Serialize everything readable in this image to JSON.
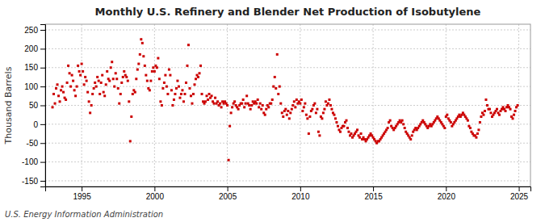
{
  "chart_data": {
    "type": "scatter",
    "title": "Monthly U.S. Refinery and Blender Net Production of Isobutylene",
    "y_label": "Thousand Barrels",
    "source": "U.S. Energy Information Administration",
    "color": "#cc0000",
    "marker": "square",
    "grid": true,
    "xlim": [
      1992.5,
      2025.8
    ],
    "ylim": [
      -165,
      265
    ],
    "xticks": [
      1995,
      2000,
      2005,
      2010,
      2015,
      2020,
      2025
    ],
    "yticks": [
      -150,
      -100,
      -50,
      0,
      50,
      100,
      150,
      200,
      250
    ],
    "x": [
      1993.0,
      1993.083,
      1993.167,
      1993.25,
      1993.333,
      1993.417,
      1993.5,
      1993.583,
      1993.667,
      1993.75,
      1993.833,
      1993.917,
      1994.0,
      1994.083,
      1994.167,
      1994.25,
      1994.333,
      1994.417,
      1994.5,
      1994.583,
      1994.667,
      1994.75,
      1994.833,
      1994.917,
      1995.0,
      1995.083,
      1995.167,
      1995.25,
      1995.333,
      1995.417,
      1995.5,
      1995.583,
      1995.667,
      1995.75,
      1995.833,
      1995.917,
      1996.0,
      1996.083,
      1996.167,
      1996.25,
      1996.333,
      1996.417,
      1996.5,
      1996.583,
      1996.667,
      1996.75,
      1996.833,
      1996.917,
      1997.0,
      1997.083,
      1997.167,
      1997.25,
      1997.333,
      1997.417,
      1997.5,
      1997.583,
      1997.667,
      1997.75,
      1997.833,
      1997.917,
      1998.0,
      1998.083,
      1998.167,
      1998.25,
      1998.333,
      1998.417,
      1998.5,
      1998.583,
      1998.667,
      1998.75,
      1998.833,
      1998.917,
      1999.0,
      1999.083,
      1999.167,
      1999.25,
      1999.333,
      1999.417,
      1999.5,
      1999.583,
      1999.667,
      1999.75,
      1999.833,
      1999.917,
      2000.0,
      2000.083,
      2000.167,
      2000.25,
      2000.333,
      2000.417,
      2000.5,
      2000.583,
      2000.667,
      2000.75,
      2000.833,
      2000.917,
      2001.0,
      2001.083,
      2001.167,
      2001.25,
      2001.333,
      2001.417,
      2001.5,
      2001.583,
      2001.667,
      2001.75,
      2001.833,
      2001.917,
      2002.0,
      2002.083,
      2002.167,
      2002.25,
      2002.333,
      2002.417,
      2002.5,
      2002.583,
      2002.667,
      2002.75,
      2002.833,
      2002.917,
      2003.0,
      2003.083,
      2003.167,
      2003.25,
      2003.333,
      2003.417,
      2003.5,
      2003.583,
      2003.667,
      2003.75,
      2003.833,
      2003.917,
      2004.0,
      2004.083,
      2004.167,
      2004.25,
      2004.333,
      2004.417,
      2004.5,
      2004.583,
      2004.667,
      2004.75,
      2004.833,
      2004.917,
      2005.0,
      2005.083,
      2005.167,
      2005.25,
      2005.333,
      2005.417,
      2005.5,
      2005.583,
      2005.667,
      2005.75,
      2005.833,
      2005.917,
      2006.0,
      2006.083,
      2006.167,
      2006.25,
      2006.333,
      2006.417,
      2006.5,
      2006.583,
      2006.667,
      2006.75,
      2006.833,
      2006.917,
      2007.0,
      2007.083,
      2007.167,
      2007.25,
      2007.333,
      2007.417,
      2007.5,
      2007.583,
      2007.667,
      2007.75,
      2007.833,
      2007.917,
      2008.0,
      2008.083,
      2008.167,
      2008.25,
      2008.333,
      2008.417,
      2008.5,
      2008.583,
      2008.667,
      2008.75,
      2008.833,
      2008.917,
      2009.0,
      2009.083,
      2009.167,
      2009.25,
      2009.333,
      2009.417,
      2009.5,
      2009.583,
      2009.667,
      2009.75,
      2009.833,
      2009.917,
      2010.0,
      2010.083,
      2010.167,
      2010.25,
      2010.333,
      2010.417,
      2010.5,
      2010.583,
      2010.667,
      2010.75,
      2010.833,
      2010.917,
      2011.0,
      2011.083,
      2011.167,
      2011.25,
      2011.333,
      2011.417,
      2011.5,
      2011.583,
      2011.667,
      2011.75,
      2011.833,
      2011.917,
      2012.0,
      2012.083,
      2012.167,
      2012.25,
      2012.333,
      2012.417,
      2012.5,
      2012.583,
      2012.667,
      2012.75,
      2012.833,
      2012.917,
      2013.0,
      2013.083,
      2013.167,
      2013.25,
      2013.333,
      2013.417,
      2013.5,
      2013.583,
      2013.667,
      2013.75,
      2013.833,
      2013.917,
      2014.0,
      2014.083,
      2014.167,
      2014.25,
      2014.333,
      2014.417,
      2014.5,
      2014.583,
      2014.667,
      2014.75,
      2014.833,
      2014.917,
      2015.0,
      2015.083,
      2015.167,
      2015.25,
      2015.333,
      2015.417,
      2015.5,
      2015.583,
      2015.667,
      2015.75,
      2015.833,
      2015.917,
      2016.0,
      2016.083,
      2016.167,
      2016.25,
      2016.333,
      2016.417,
      2016.5,
      2016.583,
      2016.667,
      2016.75,
      2016.833,
      2016.917,
      2017.0,
      2017.083,
      2017.167,
      2017.25,
      2017.333,
      2017.417,
      2017.5,
      2017.583,
      2017.667,
      2017.75,
      2017.833,
      2017.917,
      2018.0,
      2018.083,
      2018.167,
      2018.25,
      2018.333,
      2018.417,
      2018.5,
      2018.583,
      2018.667,
      2018.75,
      2018.833,
      2018.917,
      2019.0,
      2019.083,
      2019.167,
      2019.25,
      2019.333,
      2019.417,
      2019.5,
      2019.583,
      2019.667,
      2019.75,
      2019.833,
      2019.917,
      2020.0,
      2020.083,
      2020.167,
      2020.25,
      2020.333,
      2020.417,
      2020.5,
      2020.583,
      2020.667,
      2020.75,
      2020.833,
      2020.917,
      2021.0,
      2021.083,
      2021.167,
      2021.25,
      2021.333,
      2021.417,
      2021.5,
      2021.583,
      2021.667,
      2021.75,
      2021.833,
      2021.917,
      2022.0,
      2022.083,
      2022.167,
      2022.25,
      2022.333,
      2022.417,
      2022.5,
      2022.583,
      2022.667,
      2022.75,
      2022.833,
      2022.917,
      2023.0,
      2023.083,
      2023.167,
      2023.25,
      2023.333,
      2023.417,
      2023.5,
      2023.583,
      2023.667,
      2023.75,
      2023.833,
      2023.917,
      2024.0,
      2024.083,
      2024.167,
      2024.25,
      2024.333,
      2024.417,
      2024.5,
      2024.583,
      2024.667,
      2024.75,
      2024.833,
      2024.917
    ],
    "values": [
      45,
      80,
      55,
      95,
      105,
      75,
      60,
      90,
      100,
      85,
      70,
      65,
      110,
      155,
      135,
      100,
      130,
      115,
      90,
      75,
      100,
      155,
      140,
      130,
      160,
      140,
      105,
      125,
      115,
      85,
      60,
      30,
      50,
      80,
      95,
      110,
      100,
      125,
      115,
      80,
      110,
      130,
      85,
      75,
      105,
      140,
      120,
      115,
      150,
      165,
      120,
      100,
      135,
      120,
      95,
      55,
      80,
      110,
      125,
      140,
      130,
      125,
      115,
      60,
      -45,
      20,
      80,
      90,
      85,
      120,
      145,
      160,
      185,
      225,
      215,
      180,
      155,
      130,
      115,
      95,
      90,
      115,
      140,
      150,
      140,
      155,
      150,
      175,
      120,
      60,
      50,
      95,
      110,
      130,
      100,
      80,
      145,
      130,
      90,
      50,
      65,
      80,
      95,
      115,
      100,
      70,
      80,
      90,
      60,
      80,
      110,
      155,
      210,
      95,
      75,
      55,
      80,
      105,
      120,
      130,
      125,
      135,
      155,
      80,
      60,
      55,
      60,
      75,
      65,
      80,
      70,
      75,
      60,
      55,
      70,
      55,
      60,
      50,
      55,
      45,
      60,
      55,
      60,
      55,
      50,
      -95,
      -5,
      30,
      45,
      55,
      60,
      50,
      45,
      40,
      50,
      55,
      55,
      65,
      45,
      55,
      75,
      55,
      50,
      40,
      50,
      60,
      55,
      60,
      55,
      65,
      45,
      55,
      40,
      50,
      30,
      25,
      40,
      50,
      45,
      55,
      55,
      65,
      100,
      125,
      95,
      185,
      80,
      100,
      55,
      30,
      20,
      35,
      40,
      25,
      35,
      15,
      30,
      40,
      50,
      60,
      45,
      65,
      55,
      60,
      55,
      65,
      35,
      45,
      55,
      25,
      15,
      -25,
      20,
      35,
      40,
      50,
      55,
      30,
      40,
      -20,
      -30,
      20,
      15,
      30,
      40,
      60,
      50,
      55,
      65,
      50,
      40,
      30,
      25,
      15,
      5,
      -5,
      -15,
      -20,
      -10,
      -5,
      -5,
      5,
      10,
      -10,
      -20,
      -30,
      -25,
      -35,
      -30,
      -25,
      -20,
      -15,
      -30,
      -35,
      -25,
      -40,
      -35,
      -40,
      -45,
      -40,
      -35,
      -30,
      -25,
      -30,
      -35,
      -40,
      -45,
      -50,
      -45,
      -45,
      -40,
      -35,
      -30,
      -25,
      -20,
      -15,
      -10,
      5,
      10,
      -5,
      -10,
      -15,
      -10,
      -5,
      0,
      5,
      10,
      5,
      10,
      0,
      -10,
      -20,
      -25,
      -30,
      -35,
      -40,
      -30,
      -20,
      -15,
      -10,
      -15,
      -10,
      -5,
      0,
      5,
      10,
      5,
      0,
      -5,
      -10,
      -5,
      0,
      -5,
      0,
      5,
      10,
      15,
      20,
      15,
      10,
      5,
      0,
      -5,
      -10,
      20,
      25,
      15,
      10,
      5,
      -5,
      0,
      5,
      10,
      15,
      20,
      25,
      20,
      25,
      30,
      25,
      20,
      15,
      10,
      -5,
      -10,
      -20,
      -25,
      -30,
      -30,
      -35,
      -25,
      -15,
      5,
      20,
      30,
      25,
      35,
      65,
      50,
      40,
      40,
      30,
      20,
      25,
      30,
      35,
      40,
      30,
      25,
      35,
      40,
      45,
      40,
      35,
      45,
      50,
      45,
      40,
      20,
      15,
      25,
      35,
      45,
      50
    ]
  }
}
